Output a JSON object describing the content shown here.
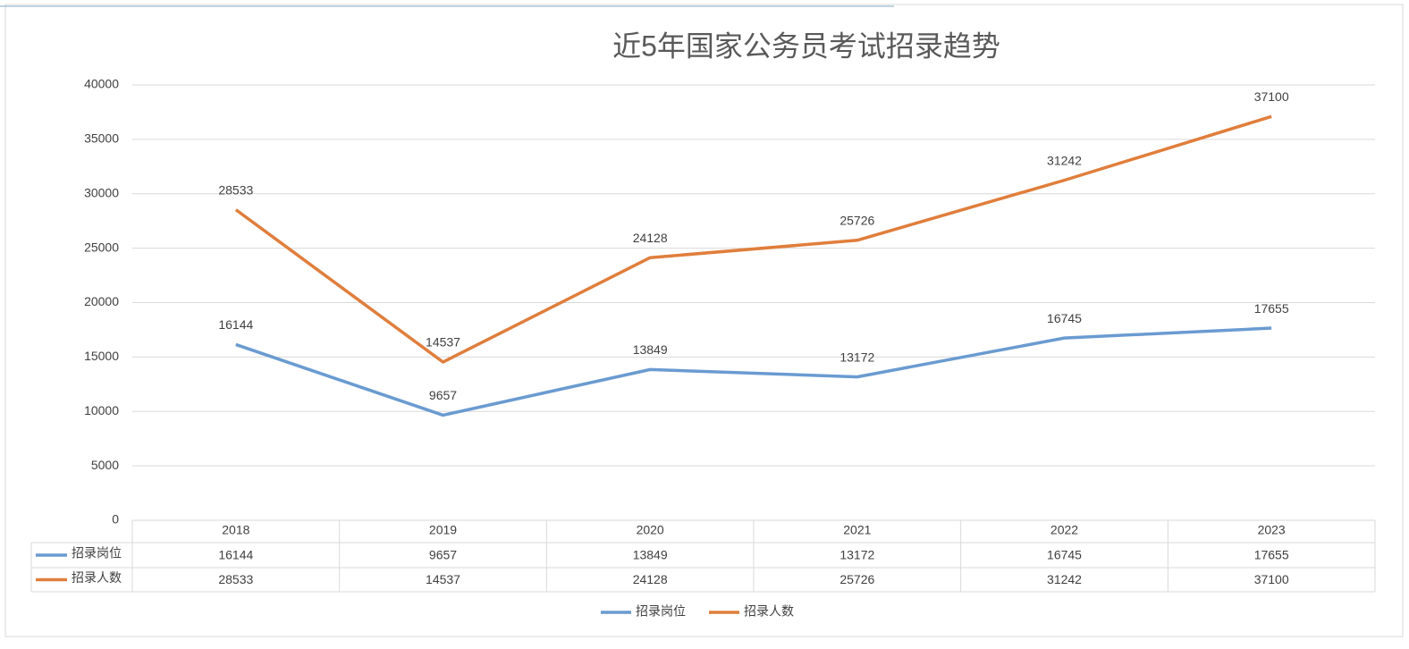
{
  "chart_data": {
    "type": "line",
    "title": "近5年国家公务员考试招录趋势",
    "categories": [
      "2018",
      "2019",
      "2020",
      "2021",
      "2022",
      "2023"
    ],
    "series": [
      {
        "name": "招录岗位",
        "color": "#6a9bd1",
        "values": [
          16144,
          9657,
          13849,
          13172,
          16745,
          17655
        ]
      },
      {
        "name": "招录人数",
        "color": "#e07e3c",
        "values": [
          28533,
          14537,
          24128,
          25726,
          31242,
          37100
        ]
      }
    ],
    "ylim": [
      0,
      40000
    ],
    "yticks": [
      0,
      5000,
      10000,
      15000,
      20000,
      25000,
      30000,
      35000,
      40000
    ],
    "grid": true,
    "legend": "bottom",
    "data_table": true
  }
}
